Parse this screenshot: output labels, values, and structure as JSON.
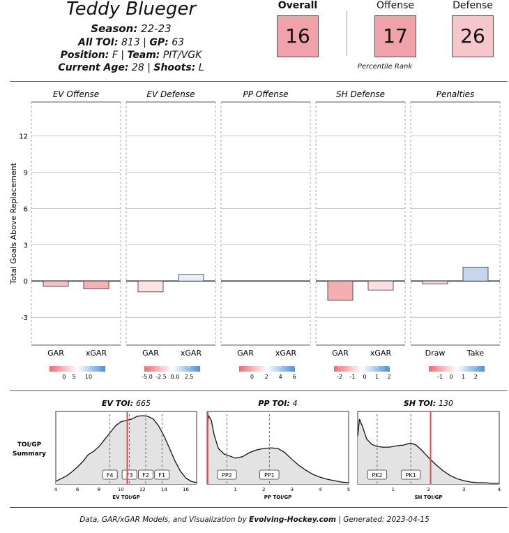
{
  "header": {
    "player_name": "Teddy Blueger",
    "season_label": "Season",
    "season": "22-23",
    "all_toi_label": "All TOI",
    "all_toi": "813",
    "gp_label": "GP",
    "gp": "63",
    "position_label": "Position",
    "position": "F",
    "team_label": "Team",
    "team": "PIT/VGK",
    "age_label": "Current Age",
    "age": "28",
    "shoots_label": "Shoots",
    "shoots": "L"
  },
  "ranks": {
    "overall_label": "Overall",
    "overall": "16",
    "offense_label": "Offense",
    "offense": "17",
    "defense_label": "Defense",
    "defense": "26",
    "percentile_label": "Percentile Rank",
    "colors": {
      "overall": "#efa3a8",
      "offense": "#efa3a8",
      "defense": "#f6c7ca"
    }
  },
  "chart_data": [
    {
      "type": "bar",
      "ylabel": "Total Goals Above Replacement",
      "ylim": [
        -5.3,
        14.8
      ],
      "yticks": [
        -3,
        0,
        3,
        6,
        9,
        12
      ],
      "panels": [
        {
          "title": "EV Offense",
          "categories": [
            "GAR",
            "xGAR"
          ],
          "values": [
            -0.45,
            -0.65
          ],
          "colors": [
            "#f3c1c4",
            "#f1b1b5"
          ],
          "legend_ticks": [
            "0",
            "5",
            "10"
          ],
          "legend_tick_pos": [
            0.26,
            0.44,
            0.7
          ]
        },
        {
          "title": "EV Defense",
          "categories": [
            "GAR",
            "xGAR"
          ],
          "values": [
            -0.9,
            0.55
          ],
          "colors": [
            "#fbe2e3",
            "#e9eef8"
          ],
          "legend_ticks": [
            "-5.0",
            "-2.5",
            "0.0",
            "2.5"
          ],
          "legend_tick_pos": [
            0.05,
            0.3,
            0.55,
            0.8
          ]
        },
        {
          "title": "PP Offense",
          "categories": [
            "GAR",
            "xGAR"
          ],
          "values": [
            0,
            0
          ],
          "colors": [
            "#fde6e7",
            "#fde6e7"
          ],
          "legend_ticks": [
            "0",
            "2",
            "4",
            "6"
          ],
          "legend_tick_pos": [
            0.23,
            0.49,
            0.74,
            0.99
          ]
        },
        {
          "title": "SH Defense",
          "categories": [
            "GAR",
            "xGAR"
          ],
          "values": [
            -1.6,
            -0.75
          ],
          "colors": [
            "#f3aeb2",
            "#fbdfe0"
          ],
          "legend_ticks": [
            "-2",
            "-1",
            "0",
            "1",
            "2"
          ],
          "legend_tick_pos": [
            0.1,
            0.33,
            0.55,
            0.77,
            0.99
          ]
        },
        {
          "title": "Penalties",
          "categories": [
            "Draw",
            "Take"
          ],
          "values": [
            -0.25,
            1.15
          ],
          "colors": [
            "#f9d4d6",
            "#c6d6ee"
          ],
          "legend_ticks": [
            "-1",
            "0",
            "1",
            "2"
          ],
          "legend_tick_pos": [
            0.2,
            0.4,
            0.62,
            0.84
          ]
        }
      ]
    },
    {
      "type": "area",
      "row_label_1": "TOI/GP",
      "row_label_2": "Summary",
      "panels": [
        {
          "title_label": "EV TOI",
          "title_value": "665",
          "xlabel": "EV TOI/GP",
          "xlim": [
            4,
            17
          ],
          "xticks": [
            4,
            6,
            8,
            10,
            12,
            14,
            16
          ],
          "player_value": 10.6,
          "markers": [
            {
              "label": "F4",
              "x": 9.0
            },
            {
              "label": "F3",
              "x": 10.8
            },
            {
              "label": "F2",
              "x": 12.3
            },
            {
              "label": "F1",
              "x": 13.8
            }
          ],
          "curve_x": [
            4.0,
            4.5,
            5.0,
            5.5,
            6.0,
            6.5,
            7.0,
            7.5,
            8.0,
            8.5,
            9.0,
            9.5,
            10.0,
            10.5,
            11.0,
            11.5,
            12.0,
            12.5,
            13.0,
            13.5,
            14.0,
            14.5,
            15.0,
            15.5,
            16.0,
            16.5,
            17.0
          ],
          "curve_y": [
            0.04,
            0.08,
            0.12,
            0.18,
            0.25,
            0.33,
            0.43,
            0.48,
            0.55,
            0.65,
            0.75,
            0.85,
            0.91,
            0.93,
            0.95,
            0.99,
            1.0,
            0.99,
            0.95,
            0.85,
            0.7,
            0.52,
            0.34,
            0.19,
            0.09,
            0.04,
            0.02
          ]
        },
        {
          "title_label": "PP TOI",
          "title_value": "4",
          "xlabel": "PP TOI/GP",
          "xlim": [
            0,
            5
          ],
          "xticks": [
            1,
            2,
            3,
            4,
            5
          ],
          "player_value": 0.02,
          "markers": [
            {
              "label": "PP2",
              "x": 0.7
            },
            {
              "label": "PP1",
              "x": 2.2
            }
          ],
          "curve_x": [
            0.0,
            0.05,
            0.15,
            0.25,
            0.4,
            0.6,
            0.8,
            1.0,
            1.25,
            1.5,
            1.75,
            2.0,
            2.25,
            2.5,
            2.75,
            3.0,
            3.25,
            3.5,
            3.75,
            4.0,
            4.25,
            4.5,
            4.75,
            5.0
          ],
          "curve_y": [
            0.8,
            1.0,
            0.93,
            0.72,
            0.52,
            0.44,
            0.41,
            0.38,
            0.4,
            0.46,
            0.5,
            0.52,
            0.53,
            0.52,
            0.46,
            0.36,
            0.27,
            0.2,
            0.14,
            0.1,
            0.07,
            0.05,
            0.03,
            0.02
          ]
        },
        {
          "title_label": "SH TOI",
          "title_value": "130",
          "xlabel": "SH TOI/GP",
          "xlim": [
            0,
            4
          ],
          "xticks": [
            1,
            2,
            3,
            4
          ],
          "player_value": 2.06,
          "markers": [
            {
              "label": "PK2",
              "x": 0.55
            },
            {
              "label": "PK1",
              "x": 1.5
            }
          ],
          "curve_x": [
            0.0,
            0.05,
            0.15,
            0.25,
            0.4,
            0.55,
            0.7,
            0.9,
            1.1,
            1.3,
            1.5,
            1.65,
            1.8,
            2.0,
            2.2,
            2.4,
            2.6,
            2.8,
            3.0,
            3.2,
            3.4,
            3.6,
            3.8,
            4.0
          ],
          "curve_y": [
            0.7,
            0.95,
            0.82,
            0.66,
            0.58,
            0.55,
            0.54,
            0.54,
            0.56,
            0.57,
            0.6,
            0.57,
            0.5,
            0.39,
            0.29,
            0.2,
            0.13,
            0.08,
            0.05,
            0.03,
            0.02,
            0.02,
            0.01,
            0.01
          ]
        }
      ]
    }
  ],
  "footer": {
    "text_prefix": "Data, GAR/xGAR Models, and Visualization by",
    "brand": "Evolving-Hockey.com",
    "text_suffix": "| Generated: 2023-04-15"
  }
}
